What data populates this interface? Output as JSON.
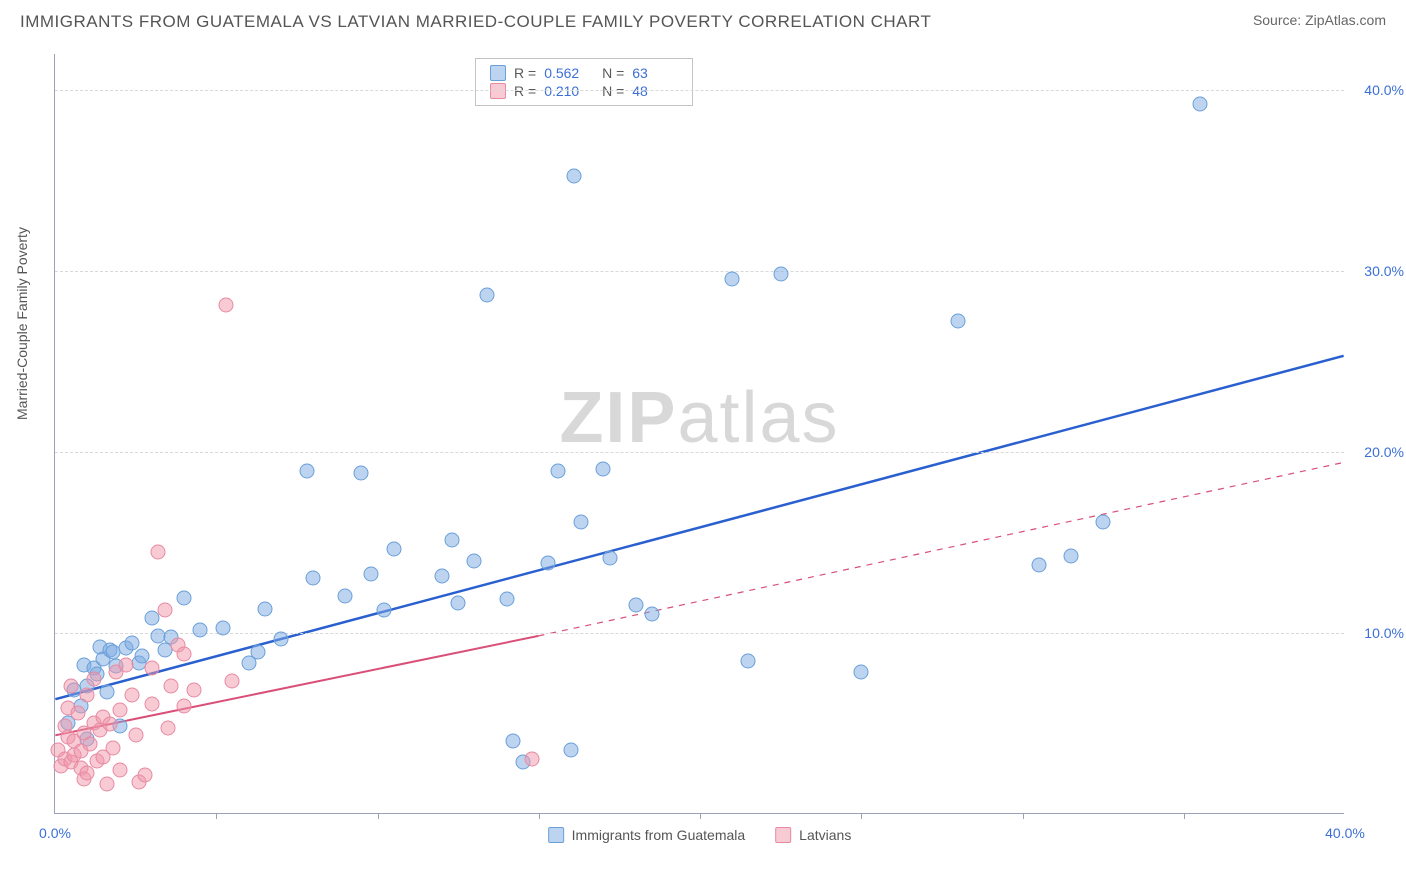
{
  "title": "IMMIGRANTS FROM GUATEMALA VS LATVIAN MARRIED-COUPLE FAMILY POVERTY CORRELATION CHART",
  "source": "Source: ZipAtlas.com",
  "watermark": "ZIPatlas",
  "y_axis_label": "Married-Couple Family Poverty",
  "chart": {
    "type": "scatter",
    "xlim": [
      0,
      40
    ],
    "ylim": [
      0,
      42
    ],
    "x_tick_label_min": "0.0%",
    "x_tick_label_max": "40.0%",
    "x_axis_ticks_minor": [
      0,
      5,
      10,
      15,
      20,
      25,
      30,
      35,
      40
    ],
    "y_ticks": [
      {
        "val": 10,
        "label": "10.0%"
      },
      {
        "val": 20,
        "label": "20.0%"
      },
      {
        "val": 30,
        "label": "30.0%"
      },
      {
        "val": 40,
        "label": "40.0%"
      }
    ],
    "grid_color": "#d8d8d8",
    "axis_color": "#9aa0b5",
    "tick_label_color": "#3b6fd6",
    "tick_label_fontsize": 14,
    "background_color": "#ffffff",
    "marker_radius": 7.5,
    "series": [
      {
        "name": "Immigrants from Guatemala",
        "fill": "rgba(123,170,227,0.5)",
        "stroke": "#6a9fd8",
        "trend": {
          "color": "#2a5fcf",
          "width": 2.5,
          "x1": 0,
          "y1": 6.3,
          "x2": 40,
          "y2": 25.3,
          "dash": null
        },
        "stats": {
          "R": "0.562",
          "N": "63"
        },
        "points": [
          [
            0.4,
            5.0
          ],
          [
            0.6,
            6.8
          ],
          [
            0.8,
            5.9
          ],
          [
            0.9,
            8.2
          ],
          [
            1.0,
            7.0
          ],
          [
            1.0,
            4.1
          ],
          [
            1.2,
            8.0
          ],
          [
            1.3,
            7.7
          ],
          [
            1.4,
            9.2
          ],
          [
            1.5,
            8.5
          ],
          [
            1.6,
            6.7
          ],
          [
            1.7,
            9.0
          ],
          [
            1.8,
            8.9
          ],
          [
            1.9,
            8.1
          ],
          [
            2.0,
            4.8
          ],
          [
            2.2,
            9.1
          ],
          [
            2.4,
            9.4
          ],
          [
            2.6,
            8.3
          ],
          [
            2.7,
            8.7
          ],
          [
            3.0,
            10.8
          ],
          [
            3.2,
            9.8
          ],
          [
            3.4,
            9.0
          ],
          [
            3.6,
            9.7
          ],
          [
            4.0,
            11.9
          ],
          [
            4.5,
            10.1
          ],
          [
            5.2,
            10.2
          ],
          [
            6.0,
            8.3
          ],
          [
            6.5,
            11.3
          ],
          [
            7.8,
            18.9
          ],
          [
            8.0,
            13.0
          ],
          [
            9.0,
            12.0
          ],
          [
            9.5,
            18.8
          ],
          [
            9.8,
            13.2
          ],
          [
            10.2,
            11.2
          ],
          [
            10.5,
            14.6
          ],
          [
            12.0,
            13.1
          ],
          [
            12.3,
            15.1
          ],
          [
            12.5,
            11.6
          ],
          [
            13.0,
            13.9
          ],
          [
            13.4,
            28.6
          ],
          [
            14.0,
            11.8
          ],
          [
            14.2,
            4.0
          ],
          [
            14.5,
            2.8
          ],
          [
            15.3,
            13.8
          ],
          [
            15.6,
            18.9
          ],
          [
            16.0,
            3.5
          ],
          [
            16.1,
            35.2
          ],
          [
            16.3,
            16.1
          ],
          [
            17.0,
            19.0
          ],
          [
            17.2,
            14.1
          ],
          [
            18.0,
            11.5
          ],
          [
            18.5,
            11.0
          ],
          [
            21.0,
            29.5
          ],
          [
            21.5,
            8.4
          ],
          [
            22.5,
            29.8
          ],
          [
            25.0,
            7.8
          ],
          [
            28.0,
            27.2
          ],
          [
            30.5,
            13.7
          ],
          [
            31.5,
            14.2
          ],
          [
            32.5,
            16.1
          ],
          [
            35.5,
            39.2
          ],
          [
            6.3,
            8.9
          ],
          [
            7.0,
            9.6
          ]
        ]
      },
      {
        "name": "Latvians",
        "fill": "rgba(240,150,170,0.5)",
        "stroke": "#e78aa3",
        "trend": {
          "color": "#d94f78",
          "width": 2,
          "x1": 0,
          "y1": 4.3,
          "x2": 15,
          "y2": 9.8,
          "dash": null,
          "extend": {
            "x1": 15,
            "y1": 9.8,
            "x2": 40,
            "y2": 19.4,
            "dash": "6,6"
          }
        },
        "stats": {
          "R": "0.210",
          "N": "48"
        },
        "points": [
          [
            0.1,
            3.5
          ],
          [
            0.2,
            2.6
          ],
          [
            0.3,
            3.0
          ],
          [
            0.3,
            4.8
          ],
          [
            0.4,
            5.8
          ],
          [
            0.4,
            4.2
          ],
          [
            0.5,
            2.8
          ],
          [
            0.5,
            7.0
          ],
          [
            0.6,
            4.0
          ],
          [
            0.6,
            3.2
          ],
          [
            0.7,
            5.5
          ],
          [
            0.8,
            2.5
          ],
          [
            0.8,
            3.4
          ],
          [
            0.9,
            1.9
          ],
          [
            0.9,
            4.4
          ],
          [
            1.0,
            2.2
          ],
          [
            1.0,
            6.5
          ],
          [
            1.1,
            3.8
          ],
          [
            1.2,
            5.0
          ],
          [
            1.2,
            7.4
          ],
          [
            1.3,
            2.9
          ],
          [
            1.4,
            4.6
          ],
          [
            1.5,
            3.1
          ],
          [
            1.5,
            5.3
          ],
          [
            1.6,
            1.6
          ],
          [
            1.7,
            4.9
          ],
          [
            1.8,
            3.6
          ],
          [
            1.9,
            7.8
          ],
          [
            2.0,
            2.4
          ],
          [
            2.0,
            5.7
          ],
          [
            2.2,
            8.2
          ],
          [
            2.4,
            6.5
          ],
          [
            2.5,
            4.3
          ],
          [
            2.6,
            1.7
          ],
          [
            2.8,
            2.1
          ],
          [
            3.0,
            8.0
          ],
          [
            3.0,
            6.0
          ],
          [
            3.2,
            14.4
          ],
          [
            3.4,
            11.2
          ],
          [
            3.5,
            4.7
          ],
          [
            3.6,
            7.0
          ],
          [
            3.8,
            9.3
          ],
          [
            4.0,
            5.9
          ],
          [
            4.0,
            8.8
          ],
          [
            4.3,
            6.8
          ],
          [
            5.3,
            28.1
          ],
          [
            5.5,
            7.3
          ],
          [
            14.8,
            3.0
          ]
        ]
      }
    ]
  },
  "bottom_legend": {
    "series1_label": "Immigrants from Guatemala",
    "series2_label": "Latvians"
  }
}
